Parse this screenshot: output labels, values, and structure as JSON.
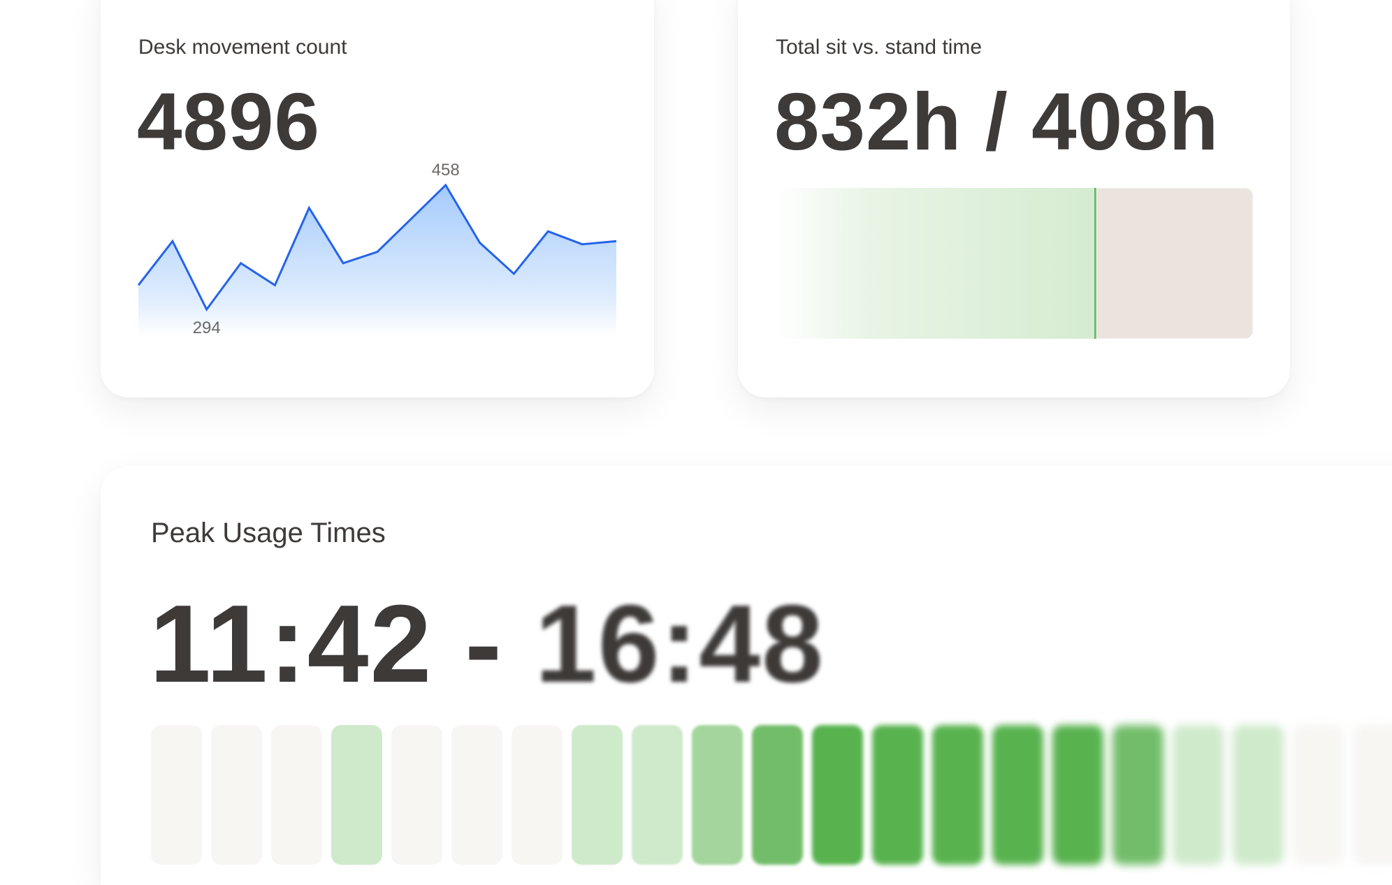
{
  "desk_movement": {
    "label": "Desk movement count",
    "value": "4896",
    "chart_data": {
      "type": "area",
      "values": [
        326,
        384,
        294,
        355,
        326,
        428,
        355,
        370,
        414,
        458,
        382,
        341,
        397,
        380,
        384
      ],
      "annotations": [
        {
          "index": 2,
          "text": "294"
        },
        {
          "index": 9,
          "text": "458"
        }
      ],
      "line_color": "#2563eb",
      "fill_color": "#a5cbfb"
    }
  },
  "sit_stand": {
    "label": "Total sit vs. stand time",
    "value": "832h / 408h",
    "sit_hours": 832,
    "stand_hours": 408,
    "sit_color": "#d5ecd1",
    "stand_color": "#ebe3dd",
    "divider_color": "#5cb85c"
  },
  "peak_usage": {
    "label": "Peak Usage Times",
    "start": "11:42",
    "separator": " - ",
    "end": "16:48",
    "levels": [
      0,
      0,
      0,
      1,
      0,
      0,
      0,
      1,
      1,
      2,
      3,
      4,
      4,
      4,
      4,
      4,
      3,
      1,
      1,
      0,
      0
    ],
    "level_colors": [
      "#f7f6f3",
      "#cfeacb",
      "#a3d59c",
      "#72bd6a",
      "#58b34f"
    ]
  }
}
